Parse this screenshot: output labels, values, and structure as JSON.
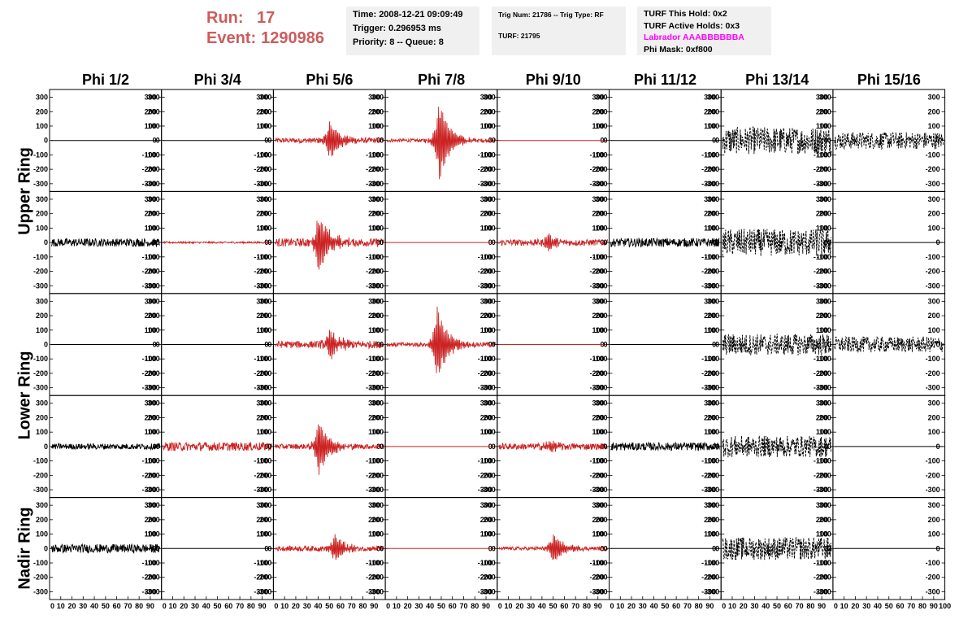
{
  "header": {
    "run_label": "Run:",
    "run_value": "17",
    "event_label": "Event:",
    "event_value": "1290986"
  },
  "info_time": {
    "time": "Time: 2008-12-21 09:09:49",
    "trigger": "Trigger: 0.296953 ms",
    "priority": "Priority: 8 -- Queue: 8"
  },
  "info_trig": {
    "trig": "Trig Num: 21786 -- Trig Type: RF",
    "turf": "TURF: 21795"
  },
  "info_turf": {
    "hold": "TURF This Hold: 0x2",
    "active": "TURF Active Holds: 0x3",
    "labrador": "Labrador AAABBBBBBA",
    "mask": "Phi Mask: 0xf800"
  },
  "colors": {
    "accent": "#cd5c5c",
    "magenta": "#ff00ff",
    "trace_red": "#cc2222",
    "trace_black": "#000000",
    "info_bg": "#f0f0f0"
  },
  "chart_data": {
    "type": "line",
    "columns": [
      "Phi 1/2",
      "Phi 3/4",
      "Phi 5/6",
      "Phi 7/8",
      "Phi 9/10",
      "Phi 11/12",
      "Phi 13/14",
      "Phi 15/16"
    ],
    "rows": [
      "Upper Ring",
      "Upper Ring",
      "Lower Ring",
      "Lower Ring",
      "Nadir Ring"
    ],
    "row_labels": [
      "Upper Ring",
      "Lower Ring",
      "Nadir Ring"
    ],
    "ylim": [
      -320,
      320
    ],
    "yticks": [
      -300,
      -200,
      -100,
      0,
      100,
      200,
      300
    ],
    "xlim": [
      0,
      100
    ],
    "xtick_labels": [
      "0",
      "10",
      "20",
      "30",
      "40",
      "50",
      "60",
      "70",
      "80",
      "90",
      "100"
    ],
    "grid": false,
    "panels": [
      [
        {
          "color": "black",
          "pulse": 0,
          "noise": 0,
          "center": 0
        },
        {
          "color": "black",
          "pulse": 0,
          "noise": 0,
          "center": 0
        },
        {
          "color": "red",
          "pulse": 140,
          "noise": 18,
          "center": 50
        },
        {
          "color": "red",
          "pulse": 290,
          "noise": 12,
          "center": 48
        },
        {
          "color": "red",
          "pulse": 0,
          "noise": 0,
          "center": 0
        },
        {
          "color": "black",
          "pulse": 0,
          "noise": 0,
          "center": 0
        },
        {
          "color": "black",
          "pulse": 0,
          "noise": 95,
          "center": 0
        },
        {
          "color": "black",
          "pulse": 0,
          "noise": 60,
          "center": 0
        }
      ],
      [
        {
          "color": "black",
          "pulse": 0,
          "noise": 28,
          "center": 0
        },
        {
          "color": "red",
          "pulse": 0,
          "noise": 6,
          "center": 0
        },
        {
          "color": "red",
          "pulse": 220,
          "noise": 28,
          "center": 40
        },
        {
          "color": "red",
          "pulse": 0,
          "noise": 0,
          "center": 0
        },
        {
          "color": "red",
          "pulse": 50,
          "noise": 22,
          "center": 45
        },
        {
          "color": "black",
          "pulse": 0,
          "noise": 30,
          "center": 0
        },
        {
          "color": "black",
          "pulse": 0,
          "noise": 95,
          "center": 0
        },
        {
          "color": "black",
          "pulse": 0,
          "noise": 0,
          "center": 0
        }
      ],
      [
        {
          "color": "black",
          "pulse": 0,
          "noise": 0,
          "center": 0
        },
        {
          "color": "black",
          "pulse": 0,
          "noise": 0,
          "center": 0
        },
        {
          "color": "red",
          "pulse": 110,
          "noise": 25,
          "center": 50
        },
        {
          "color": "red",
          "pulse": 270,
          "noise": 15,
          "center": 46
        },
        {
          "color": "red",
          "pulse": 0,
          "noise": 0,
          "center": 0
        },
        {
          "color": "black",
          "pulse": 0,
          "noise": 0,
          "center": 0
        },
        {
          "color": "black",
          "pulse": 0,
          "noise": 75,
          "center": 0
        },
        {
          "color": "black",
          "pulse": 0,
          "noise": 55,
          "center": 0
        }
      ],
      [
        {
          "color": "black",
          "pulse": 0,
          "noise": 20,
          "center": 0
        },
        {
          "color": "red",
          "pulse": 0,
          "noise": 30,
          "center": 0
        },
        {
          "color": "red",
          "pulse": 190,
          "noise": 18,
          "center": 40
        },
        {
          "color": "red",
          "pulse": 0,
          "noise": 0,
          "center": 0
        },
        {
          "color": "red",
          "pulse": 35,
          "noise": 22,
          "center": 45
        },
        {
          "color": "black",
          "pulse": 0,
          "noise": 28,
          "center": 0
        },
        {
          "color": "black",
          "pulse": 0,
          "noise": 75,
          "center": 0
        },
        {
          "color": "black",
          "pulse": 0,
          "noise": 0,
          "center": 0
        }
      ],
      [
        {
          "color": "black",
          "pulse": 0,
          "noise": 30,
          "center": 0
        },
        {
          "color": "black",
          "pulse": 0,
          "noise": 0,
          "center": 0
        },
        {
          "color": "red",
          "pulse": 95,
          "noise": 18,
          "center": 55
        },
        {
          "color": "red",
          "pulse": 0,
          "noise": 0,
          "center": 0
        },
        {
          "color": "red",
          "pulse": 110,
          "noise": 12,
          "center": 50
        },
        {
          "color": "black",
          "pulse": 0,
          "noise": 0,
          "center": 0
        },
        {
          "color": "black",
          "pulse": 0,
          "noise": 80,
          "center": 0
        },
        {
          "color": "black",
          "pulse": 0,
          "noise": 0,
          "center": 0
        }
      ]
    ]
  }
}
